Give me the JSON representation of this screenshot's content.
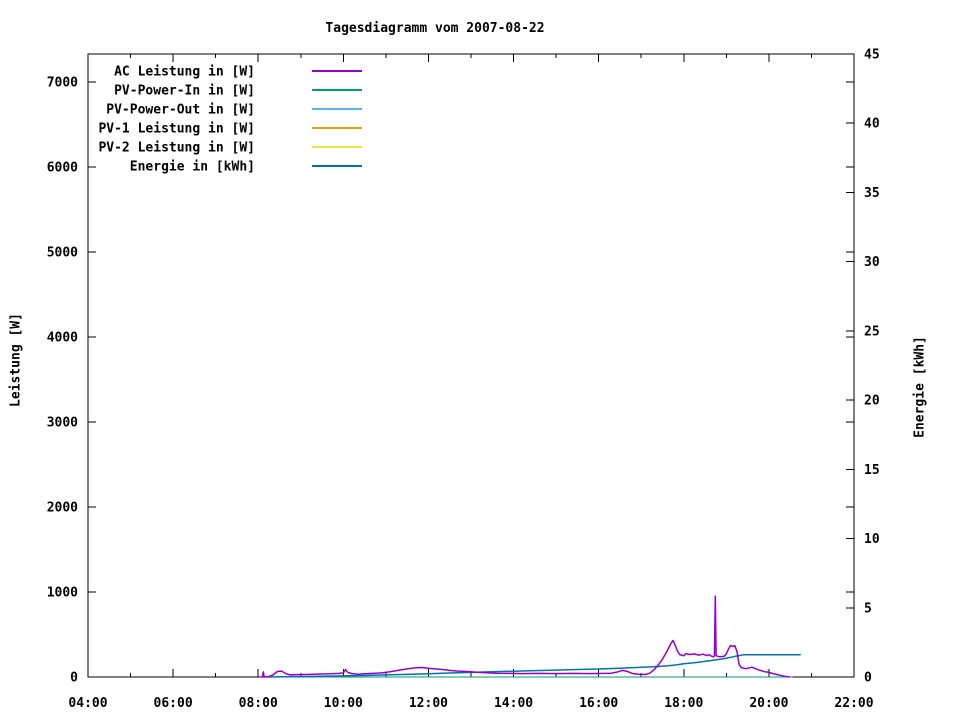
{
  "title": "Tagesdiagramm vom 2007-08-22",
  "axes": {
    "x": {
      "tick_labels": [
        "04:00",
        "06:00",
        "08:00",
        "10:00",
        "12:00",
        "14:00",
        "16:00",
        "18:00",
        "20:00",
        "22:00"
      ]
    },
    "y_left": {
      "label": "Leistung [W]",
      "tick_labels": [
        "0",
        "1000",
        "2000",
        "3000",
        "4000",
        "5000",
        "6000",
        "7000"
      ]
    },
    "y_right": {
      "label": "Energie [kWh]",
      "tick_labels": [
        "0",
        "5",
        "10",
        "15",
        "20",
        "25",
        "30",
        "35",
        "40",
        "45"
      ]
    }
  },
  "legend": {
    "entries": [
      {
        "label": "AC Leistung in [W]",
        "color": "#9400d3"
      },
      {
        "label": "PV-Power-In in [W]",
        "color": "#009e73"
      },
      {
        "label": "PV-Power-Out in [W]",
        "color": "#56b4e9"
      },
      {
        "label": "PV-1 Leistung in [W]",
        "color": "#e69f00"
      },
      {
        "label": "PV-2 Leistung in [W]",
        "color": "#f0e442"
      },
      {
        "label": "Energie in [kWh]",
        "color": "#0072b2"
      }
    ]
  },
  "chart_data": {
    "type": "line",
    "title": "Tagesdiagramm vom 2007-08-22",
    "x_unit": "hour_of_day",
    "x_range": [
      4,
      22
    ],
    "x_major_step_hours": 2,
    "x_minor_step_hours": 1,
    "grid": false,
    "legend_position": "top-left-inside",
    "y_left": {
      "label": "Leistung [W]",
      "range": [
        0,
        7330
      ],
      "tick_step": 1000
    },
    "y_right": {
      "label": "Energie [kWh]",
      "range": [
        0,
        45
      ],
      "tick_step": 5
    },
    "series": [
      {
        "name": "AC Leistung in [W]",
        "color": "#9400d3",
        "axis": "left",
        "z": 2,
        "width": 1.5,
        "points": [
          [
            8.05,
            0
          ],
          [
            8.1,
            0
          ],
          [
            8.12,
            60
          ],
          [
            8.14,
            0
          ],
          [
            8.25,
            5
          ],
          [
            8.35,
            25
          ],
          [
            8.45,
            65
          ],
          [
            8.55,
            70
          ],
          [
            8.65,
            40
          ],
          [
            8.75,
            25
          ],
          [
            8.9,
            28
          ],
          [
            9.1,
            30
          ],
          [
            9.3,
            32
          ],
          [
            9.5,
            35
          ],
          [
            9.7,
            38
          ],
          [
            9.9,
            42
          ],
          [
            10.0,
            48
          ],
          [
            10.05,
            88
          ],
          [
            10.1,
            55
          ],
          [
            10.2,
            40
          ],
          [
            10.35,
            32
          ],
          [
            10.5,
            38
          ],
          [
            10.7,
            42
          ],
          [
            10.9,
            48
          ],
          [
            11.1,
            62
          ],
          [
            11.3,
            80
          ],
          [
            11.5,
            95
          ],
          [
            11.7,
            108
          ],
          [
            11.85,
            112
          ],
          [
            12.0,
            102
          ],
          [
            12.15,
            95
          ],
          [
            12.3,
            90
          ],
          [
            12.5,
            78
          ],
          [
            12.7,
            70
          ],
          [
            12.9,
            65
          ],
          [
            13.1,
            58
          ],
          [
            13.3,
            52
          ],
          [
            13.6,
            45
          ],
          [
            13.9,
            42
          ],
          [
            14.2,
            40
          ],
          [
            14.6,
            42
          ],
          [
            15.0,
            40
          ],
          [
            15.4,
            42
          ],
          [
            15.8,
            40
          ],
          [
            16.1,
            42
          ],
          [
            16.3,
            45
          ],
          [
            16.45,
            60
          ],
          [
            16.55,
            78
          ],
          [
            16.65,
            70
          ],
          [
            16.8,
            40
          ],
          [
            16.95,
            32
          ],
          [
            17.1,
            30
          ],
          [
            17.2,
            45
          ],
          [
            17.3,
            85
          ],
          [
            17.4,
            140
          ],
          [
            17.5,
            210
          ],
          [
            17.6,
            300
          ],
          [
            17.7,
            395
          ],
          [
            17.75,
            430
          ],
          [
            17.8,
            370
          ],
          [
            17.85,
            310
          ],
          [
            17.9,
            265
          ],
          [
            18.0,
            250
          ],
          [
            18.05,
            275
          ],
          [
            18.15,
            265
          ],
          [
            18.25,
            272
          ],
          [
            18.35,
            258
          ],
          [
            18.45,
            268
          ],
          [
            18.55,
            252
          ],
          [
            18.6,
            262
          ],
          [
            18.65,
            245
          ],
          [
            18.7,
            238
          ],
          [
            18.72,
            250
          ],
          [
            18.74,
            950
          ],
          [
            18.76,
            250
          ],
          [
            18.85,
            238
          ],
          [
            18.95,
            245
          ],
          [
            19.0,
            272
          ],
          [
            19.05,
            330
          ],
          [
            19.1,
            372
          ],
          [
            19.15,
            360
          ],
          [
            19.2,
            368
          ],
          [
            19.25,
            300
          ],
          [
            19.3,
            148
          ],
          [
            19.35,
            112
          ],
          [
            19.45,
            98
          ],
          [
            19.55,
            108
          ],
          [
            19.6,
            115
          ],
          [
            19.7,
            95
          ],
          [
            19.8,
            78
          ],
          [
            19.9,
            62
          ],
          [
            20.0,
            55
          ],
          [
            20.1,
            40
          ],
          [
            20.2,
            28
          ],
          [
            20.3,
            15
          ],
          [
            20.4,
            6
          ],
          [
            20.5,
            0
          ]
        ]
      },
      {
        "name": "PV-Power-In in [W]",
        "color": "#009e73",
        "axis": "left",
        "z": 1,
        "width": 1,
        "points": [
          [
            8.05,
            0
          ],
          [
            20.55,
            0
          ]
        ]
      },
      {
        "name": "PV-Power-Out in [W]",
        "color": "#56b4e9",
        "axis": "left",
        "z": 0,
        "width": 1,
        "points": [
          [
            8.05,
            0
          ],
          [
            20.55,
            0
          ]
        ]
      },
      {
        "name": "PV-1 Leistung in [W]",
        "color": "#e69f00",
        "axis": "left",
        "z": 0,
        "width": 1,
        "points": [
          [
            8.05,
            0
          ],
          [
            20.55,
            0
          ]
        ]
      },
      {
        "name": "PV-2 Leistung in [W]",
        "color": "#f0e442",
        "axis": "left",
        "z": 0,
        "width": 1,
        "points": [
          [
            8.05,
            0
          ],
          [
            20.55,
            0
          ]
        ]
      },
      {
        "name": "Energie in [kWh]",
        "color": "#0072b2",
        "axis": "right",
        "z": 1,
        "width": 1.5,
        "points": [
          [
            8.2,
            0
          ],
          [
            8.6,
            0.02
          ],
          [
            9.0,
            0.03
          ],
          [
            9.5,
            0.05
          ],
          [
            10.0,
            0.08
          ],
          [
            10.5,
            0.11
          ],
          [
            11.0,
            0.15
          ],
          [
            11.5,
            0.19
          ],
          [
            12.0,
            0.24
          ],
          [
            12.5,
            0.29
          ],
          [
            13.0,
            0.33
          ],
          [
            13.5,
            0.38
          ],
          [
            14.0,
            0.42
          ],
          [
            14.5,
            0.46
          ],
          [
            15.0,
            0.5
          ],
          [
            15.5,
            0.54
          ],
          [
            16.0,
            0.58
          ],
          [
            16.5,
            0.63
          ],
          [
            17.0,
            0.7
          ],
          [
            17.3,
            0.74
          ],
          [
            17.6,
            0.8
          ],
          [
            17.8,
            0.87
          ],
          [
            18.0,
            0.95
          ],
          [
            18.3,
            1.05
          ],
          [
            18.6,
            1.17
          ],
          [
            18.9,
            1.3
          ],
          [
            19.1,
            1.42
          ],
          [
            19.25,
            1.52
          ],
          [
            19.4,
            1.6
          ],
          [
            19.45,
            1.6
          ],
          [
            20.0,
            1.6
          ],
          [
            20.45,
            1.6
          ],
          [
            20.75,
            1.6
          ]
        ]
      }
    ]
  }
}
